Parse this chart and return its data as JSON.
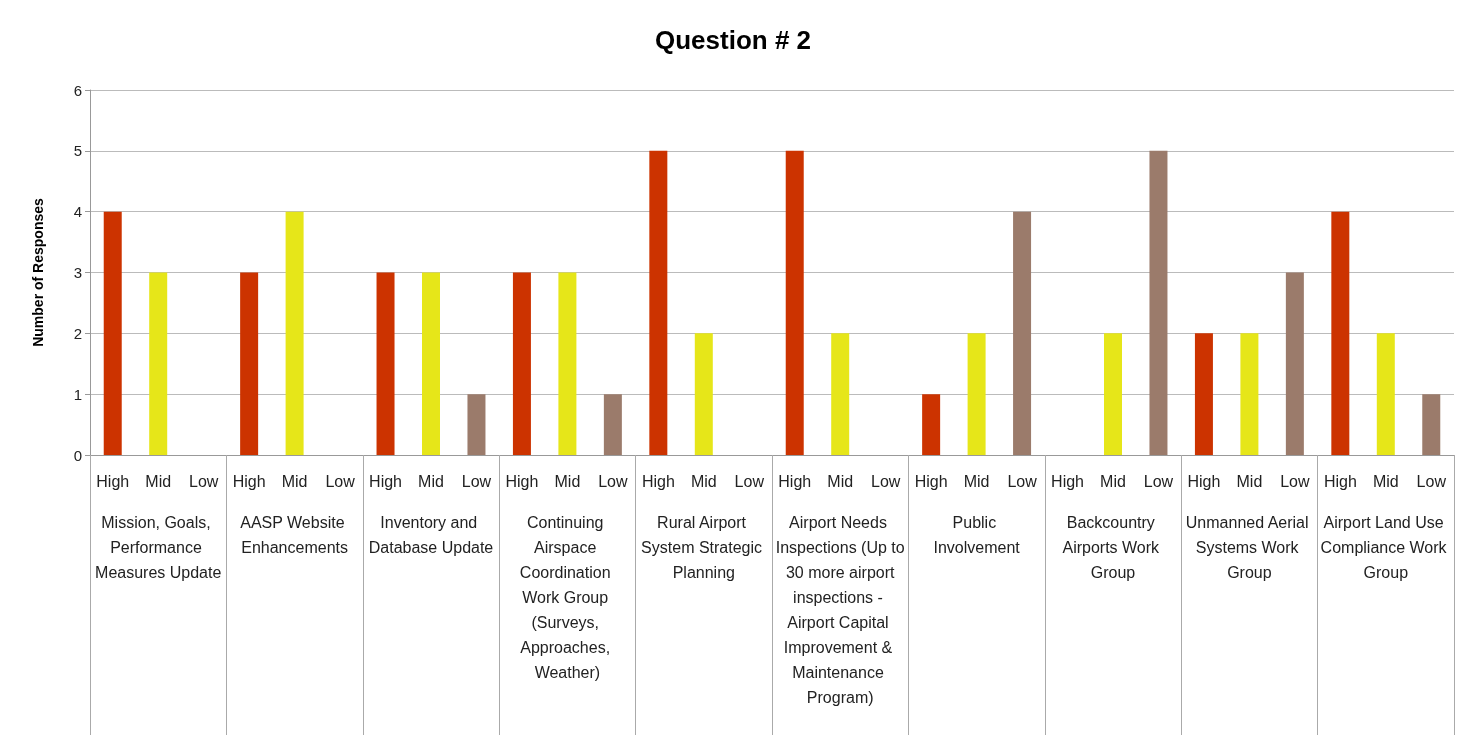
{
  "chart_data": {
    "type": "bar",
    "title": "Question # 2",
    "ylabel": "Number of Responses",
    "categories": [
      "Mission, Goals, Performance Measures Update",
      "AASP Website Enhancements",
      "Inventory and Database Update",
      "Continuing Airspace Coordination Work Group (Surveys, Approaches, Weather)",
      "Rural Airport System Strategic Planning",
      "Airport Needs Inspections (Up to 30 more airport inspections - Airport Capital Improvement & Maintenance Program)",
      "Public Involvement",
      "Backcountry Airports Work Group",
      "Unmanned Aerial Systems Work Group",
      "Airport Land Use Compliance Work Group"
    ],
    "series": [
      {
        "name": "High",
        "color": "#cc3300",
        "values": [
          4,
          3,
          3,
          3,
          5,
          5,
          1,
          0,
          2,
          4
        ]
      },
      {
        "name": "Mid",
        "color": "#e6e619",
        "values": [
          3,
          4,
          3,
          3,
          2,
          2,
          2,
          2,
          2,
          2
        ]
      },
      {
        "name": "Low",
        "color": "#9b7b6b",
        "values": [
          0,
          0,
          1,
          1,
          0,
          0,
          4,
          5,
          3,
          1
        ]
      }
    ],
    "ylim": [
      0,
      6
    ],
    "yticks": [
      0,
      1,
      2,
      3,
      4,
      5,
      6
    ],
    "grid": "y",
    "legend": false
  }
}
